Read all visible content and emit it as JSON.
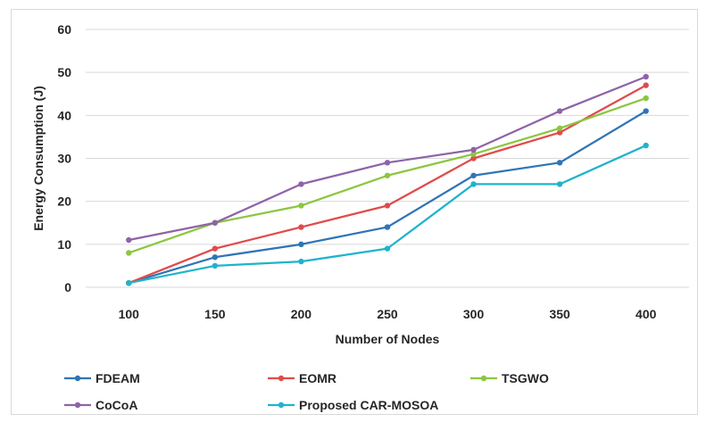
{
  "chart_data": {
    "type": "line",
    "x": [
      "100",
      "150",
      "200",
      "250",
      "300",
      "350",
      "400"
    ],
    "xlabel": "Number of Nodes",
    "ylabel": "Energy Consumption (J)",
    "ylim": [
      0,
      60
    ],
    "yticks": [
      "0",
      "10",
      "20",
      "30",
      "40",
      "50",
      "60"
    ],
    "grid": "horizontal",
    "legend": "bottom",
    "series": [
      {
        "name": "FDEAM",
        "color": "#2e75b6",
        "values": [
          1,
          7,
          10,
          14,
          26,
          29,
          41
        ]
      },
      {
        "name": "EOMR",
        "color": "#e04b4b",
        "values": [
          1,
          9,
          14,
          19,
          30,
          36,
          47
        ]
      },
      {
        "name": "TSGWO",
        "color": "#8cc63f",
        "values": [
          8,
          15,
          19,
          26,
          31,
          37,
          44
        ]
      },
      {
        "name": "CoCoA",
        "color": "#8e63a8",
        "values": [
          11,
          15,
          24,
          29,
          32,
          41,
          49
        ]
      },
      {
        "name": "Proposed CAR-MOSOA",
        "color": "#1fb3cc",
        "values": [
          1,
          5,
          6,
          9,
          24,
          24,
          33
        ]
      }
    ]
  }
}
